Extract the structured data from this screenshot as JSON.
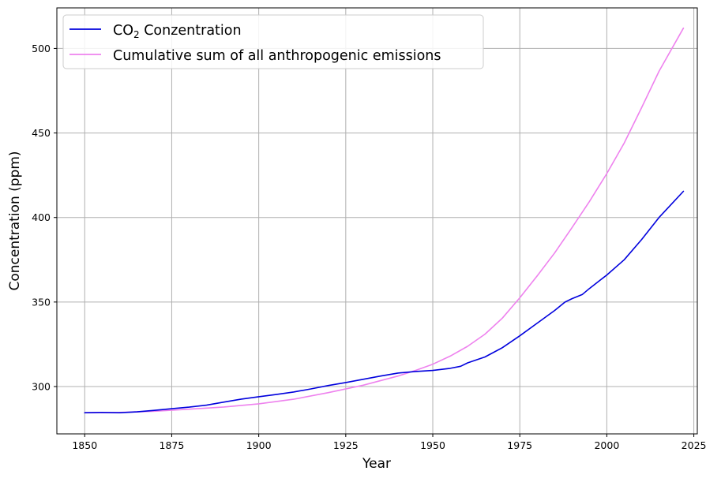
{
  "chart_data": {
    "type": "line",
    "title": "",
    "xlabel": "Year",
    "ylabel": "Concentration (ppm)",
    "xlim": [
      1842,
      2026
    ],
    "ylim": [
      272,
      524
    ],
    "xticks": [
      1850,
      1875,
      1900,
      1925,
      1950,
      1975,
      2000,
      2025
    ],
    "yticks": [
      300,
      350,
      400,
      450,
      500
    ],
    "grid": true,
    "legend_position": "top-left",
    "series": [
      {
        "name": "CO2 Conzentration",
        "legend_main": "CO",
        "legend_sub": "2",
        "legend_rest": " Conzentration",
        "color": "#0000dd",
        "x": [
          1850,
          1855,
          1860,
          1865,
          1870,
          1875,
          1880,
          1885,
          1890,
          1895,
          1900,
          1905,
          1910,
          1915,
          1920,
          1925,
          1930,
          1935,
          1940,
          1945,
          1950,
          1955,
          1958,
          1960,
          1965,
          1970,
          1975,
          1980,
          1985,
          1988,
          1990,
          1993,
          1995,
          2000,
          2005,
          2010,
          2015,
          2022
        ],
        "y": [
          284.5,
          284.7,
          284.5,
          285.0,
          285.9,
          286.9,
          287.8,
          289.0,
          290.8,
          292.6,
          294.0,
          295.3,
          296.8,
          298.6,
          300.6,
          302.4,
          304.3,
          306.2,
          308.0,
          308.9,
          309.5,
          310.8,
          312.0,
          314.0,
          317.5,
          323.0,
          330.0,
          337.5,
          345.0,
          350.0,
          352.0,
          354.5,
          358.0,
          366.0,
          375.0,
          387.0,
          400.0,
          415.5
        ]
      },
      {
        "name": "Cumulative sum of all anthropogenic emissions",
        "color": "#ee82ee",
        "x": [
          1850,
          1860,
          1870,
          1880,
          1890,
          1900,
          1910,
          1920,
          1930,
          1940,
          1945,
          1950,
          1955,
          1960,
          1965,
          1970,
          1975,
          1980,
          1985,
          1990,
          1995,
          2000,
          2005,
          2010,
          2015,
          2022
        ],
        "y": [
          284.5,
          284.7,
          285.4,
          286.6,
          287.9,
          289.8,
          292.5,
          296.4,
          300.8,
          306.2,
          309.5,
          313.2,
          318.0,
          323.8,
          331.0,
          340.5,
          352.5,
          365.5,
          379.0,
          394.0,
          409.5,
          426.0,
          444.0,
          465.0,
          486.5,
          512.0
        ]
      }
    ]
  }
}
